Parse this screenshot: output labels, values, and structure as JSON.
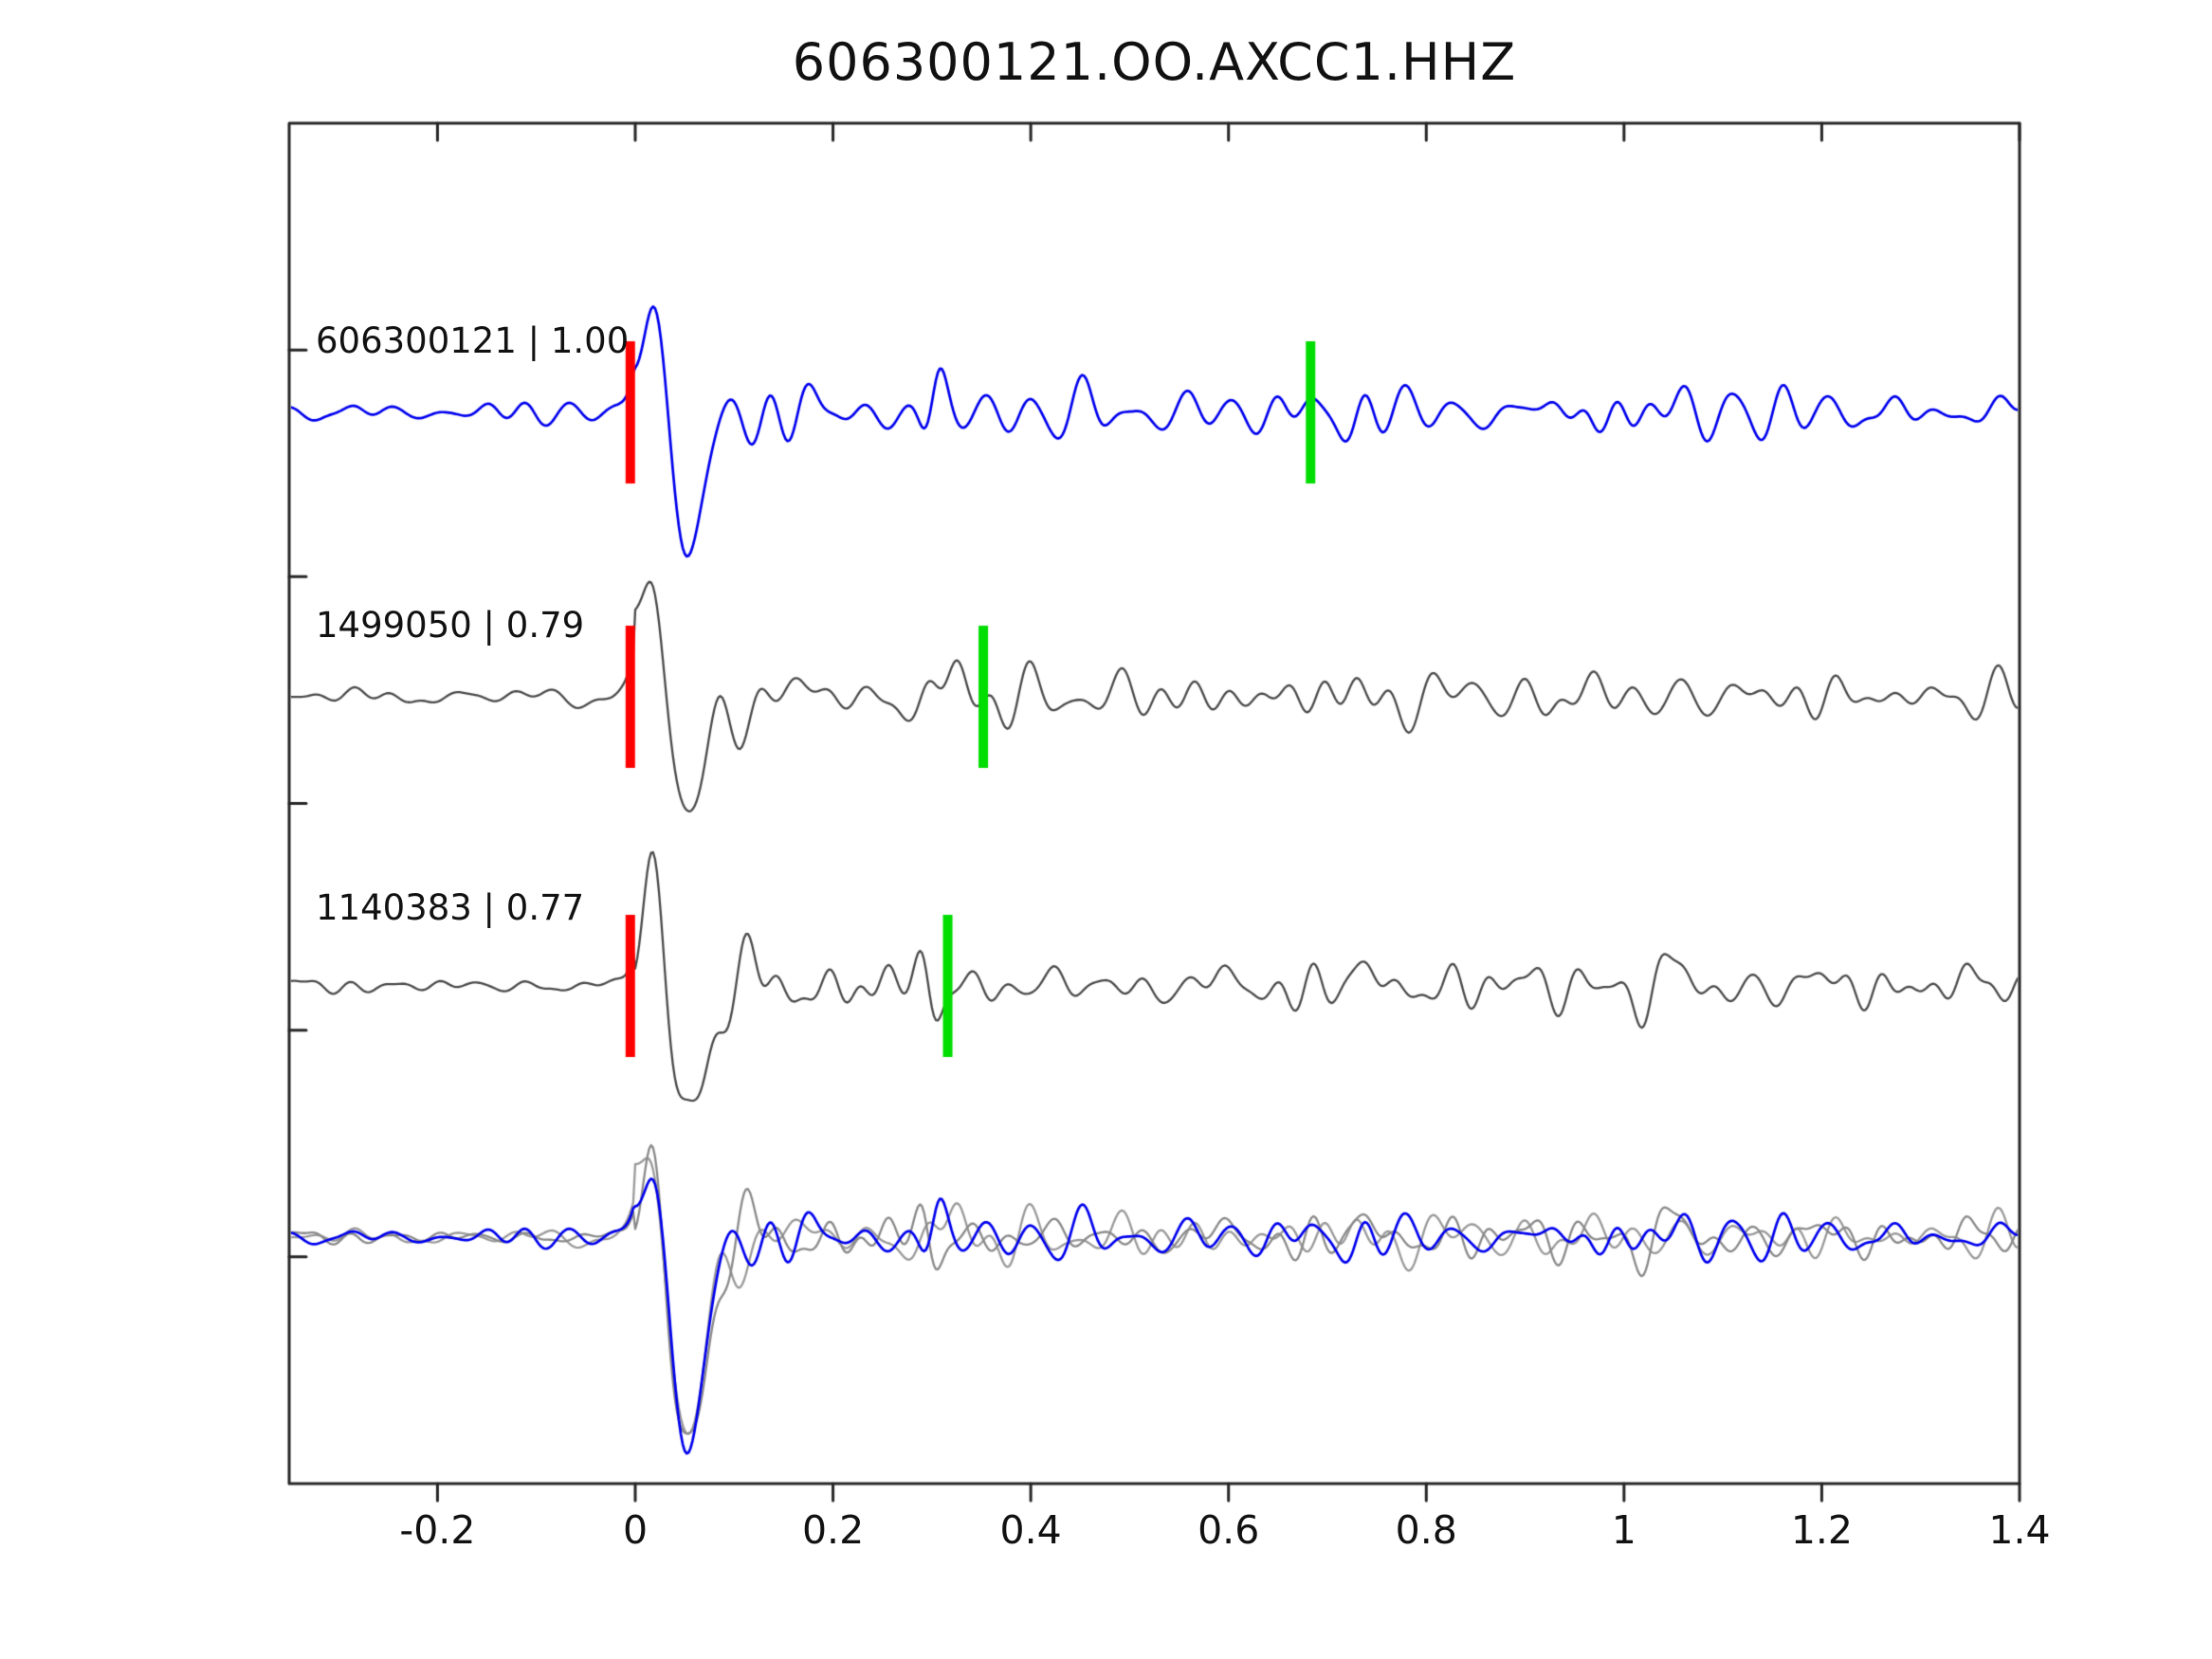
{
  "title": "606300121.OO.AXCC1.HHZ",
  "chart_data": {
    "type": "line",
    "title": "606300121.OO.AXCC1.HHZ",
    "xlabel": "",
    "ylabel": "",
    "xlim": [
      -0.35,
      1.4
    ],
    "grid": false,
    "legend": "none",
    "xticks": [
      -0.2,
      0,
      0.2,
      0.4,
      0.6,
      0.8,
      1,
      1.2,
      1.4
    ],
    "xtick_labels": [
      "-0.2",
      "0",
      "0.2",
      "0.4",
      "0.6",
      "0.8",
      "1",
      "1.2",
      "1.4"
    ],
    "pick_colors": {
      "red": "#ff0000",
      "green": "#00dd00"
    },
    "traces": [
      {
        "label": "606300121 | 1.00",
        "color": "#0000ee",
        "red_pick_x": -0.005,
        "green_pick_x": 0.683,
        "seed": 11,
        "bursts": [
          {
            "x": 0.3,
            "amp": 0.5,
            "w": 0.012
          },
          {
            "x": 0.73,
            "amp": 0.28,
            "w": 0.035
          },
          {
            "x": 1.0,
            "amp": 0.14,
            "w": 0.04
          }
        ]
      },
      {
        "label": "1499050 | 0.79",
        "color": "#4a4a4a",
        "red_pick_x": -0.005,
        "green_pick_x": 0.352,
        "seed": 22,
        "bursts": [
          {
            "x": 0.31,
            "amp": 0.22,
            "w": 0.02
          },
          {
            "x": 0.72,
            "amp": 0.15,
            "w": 0.04
          }
        ]
      },
      {
        "label": "1140383 | 0.77",
        "color": "#4a4a4a",
        "red_pick_x": -0.005,
        "green_pick_x": 0.316,
        "seed": 33,
        "bursts": [
          {
            "x": 0.3,
            "amp": 0.4,
            "w": 0.013
          },
          {
            "x": 0.72,
            "amp": 0.3,
            "w": 0.04
          },
          {
            "x": 1.02,
            "amp": 0.18,
            "w": 0.035
          }
        ]
      }
    ],
    "overlay_traces": [
      {
        "color": "#9a9a9a",
        "seed": 22
      },
      {
        "color": "#8a8a8a",
        "seed": 33
      },
      {
        "color": "#0000ee",
        "seed": 11
      }
    ]
  }
}
